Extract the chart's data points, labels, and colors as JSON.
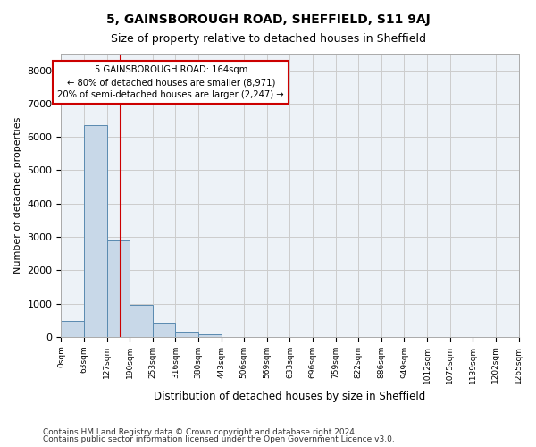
{
  "title1": "5, GAINSBOROUGH ROAD, SHEFFIELD, S11 9AJ",
  "title2": "Size of property relative to detached houses in Sheffield",
  "xlabel": "Distribution of detached houses by size in Sheffield",
  "ylabel": "Number of detached properties",
  "bar_color": "#c8d8e8",
  "bar_edge_color": "#5a8ab0",
  "bin_labels": [
    "0sqm",
    "63sqm",
    "127sqm",
    "190sqm",
    "253sqm",
    "316sqm",
    "380sqm",
    "443sqm",
    "506sqm",
    "569sqm",
    "633sqm",
    "696sqm",
    "759sqm",
    "822sqm",
    "886sqm",
    "949sqm",
    "1012sqm",
    "1075sqm",
    "1139sqm",
    "1202sqm",
    "1265sqm"
  ],
  "bar_heights": [
    480,
    6350,
    2900,
    950,
    420,
    150,
    70,
    0,
    0,
    0,
    0,
    0,
    0,
    0,
    0,
    0,
    0,
    0,
    0,
    0
  ],
  "vline_color": "#cc0000",
  "annotation_line1": "5 GAINSBOROUGH ROAD: 164sqm",
  "annotation_line2": "← 80% of detached houses are smaller (8,971)",
  "annotation_line3": "20% of semi-detached houses are larger (2,247) →",
  "annotation_box_color": "#cc0000",
  "ylim": [
    0,
    8500
  ],
  "yticks": [
    0,
    1000,
    2000,
    3000,
    4000,
    5000,
    6000,
    7000,
    8000
  ],
  "grid_color": "#cccccc",
  "background_color": "#edf2f7",
  "footer1": "Contains HM Land Registry data © Crown copyright and database right 2024.",
  "footer2": "Contains public sector information licensed under the Open Government Licence v3.0."
}
